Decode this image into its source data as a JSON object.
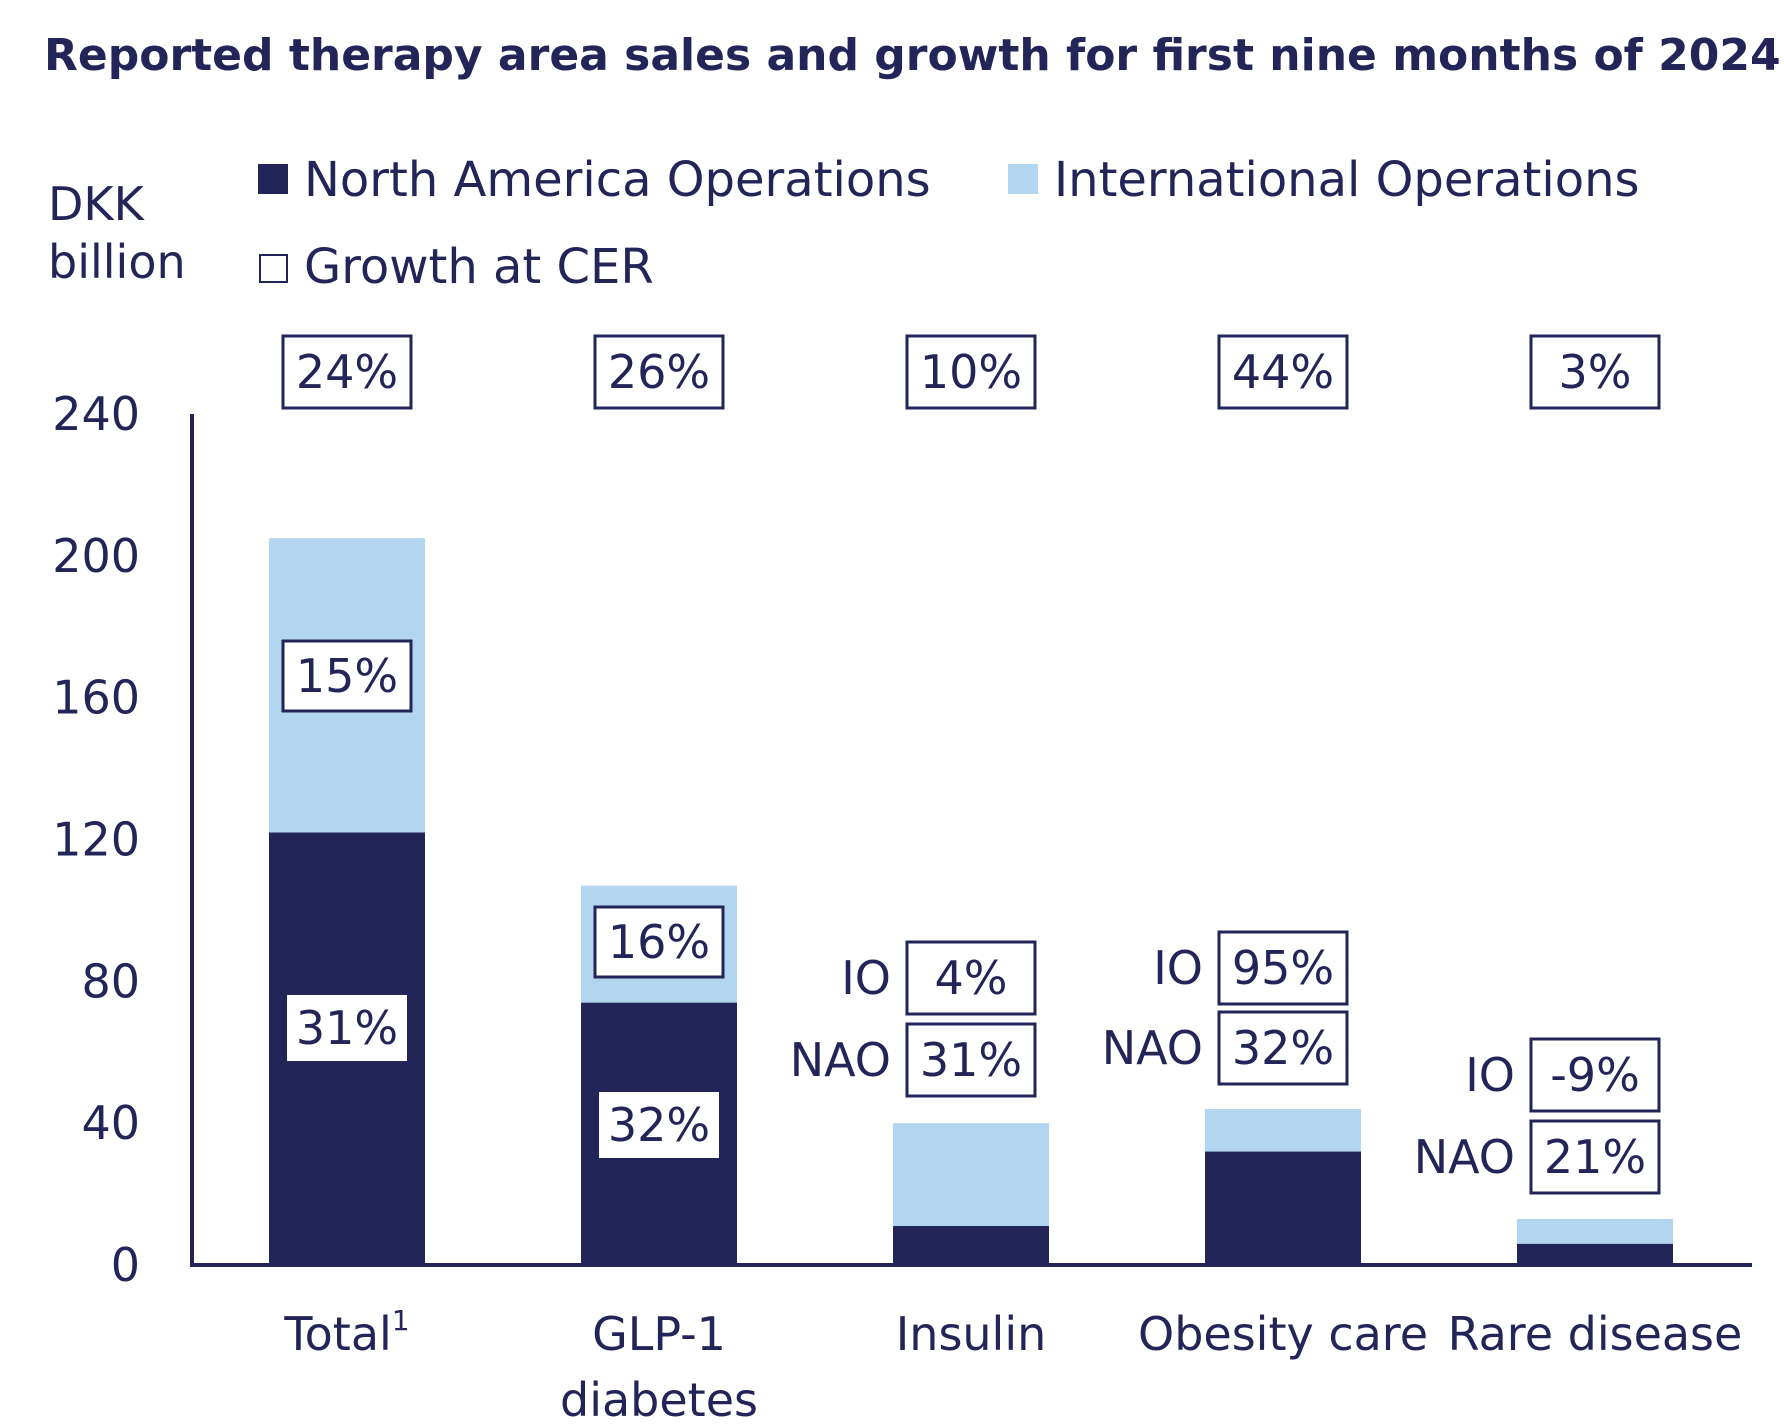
{
  "colors": {
    "navy": "#232458",
    "light_blue": "#b3d6f0",
    "text": "#232458",
    "background": "#ffffff"
  },
  "chart_data": {
    "type": "bar",
    "stacked": true,
    "title": "Reported therapy area sales and growth for first nine months of 2024",
    "ylabel_lines": [
      "DKK",
      "billion"
    ],
    "ylim": [
      0,
      240
    ],
    "yticks": [
      0,
      40,
      80,
      120,
      160,
      200,
      240
    ],
    "legend": [
      {
        "label": "North America Operations",
        "swatch": "filled-navy"
      },
      {
        "label": "International Operations",
        "swatch": "filled-light-blue"
      },
      {
        "label": "Growth at CER",
        "swatch": "outlined-box"
      }
    ],
    "legend_position": "top",
    "grid": false,
    "categories": [
      {
        "label_lines": [
          "Total"
        ],
        "superscript": "1"
      },
      {
        "label_lines": [
          "GLP-1",
          "diabetes"
        ],
        "superscript": ""
      },
      {
        "label_lines": [
          "Insulin"
        ],
        "superscript": ""
      },
      {
        "label_lines": [
          "Obesity care"
        ],
        "superscript": ""
      },
      {
        "label_lines": [
          "Rare disease"
        ],
        "superscript": ""
      }
    ],
    "series": [
      {
        "name": "North America Operations",
        "color": "#232458",
        "values": [
          122,
          74,
          11,
          32,
          6
        ]
      },
      {
        "name": "International Operations",
        "color": "#b3d6f0",
        "values": [
          83,
          33,
          29,
          12,
          7
        ]
      }
    ],
    "growth_total": [
      "24%",
      "26%",
      "10%",
      "44%",
      "3%"
    ],
    "growth_io": [
      "15%",
      "16%",
      "4%",
      "95%",
      "-9%"
    ],
    "growth_nao": [
      "31%",
      "32%",
      "31%",
      "32%",
      "21%"
    ],
    "side_labels": {
      "io": "IO",
      "nao": "NAO"
    }
  }
}
